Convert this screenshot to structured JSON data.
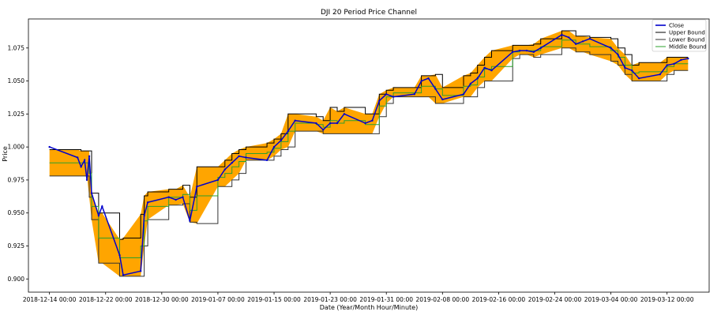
{
  "chart_data": {
    "type": "line",
    "title": "DJI 20 Period Price Channel",
    "xlabel": "Date (Year/Month Hour/Minute)",
    "ylabel": "Price",
    "ylim": [
      0.89,
      1.097
    ],
    "xlim": [
      "2018-12-11",
      "2019-03-18"
    ],
    "x_ticks": [
      "2018-12-14",
      "2018-12-22",
      "2018-12-30",
      "2019-01-07",
      "2019-01-15",
      "2019-01-23",
      "2019-01-31",
      "2019-02-08",
      "2019-02-16",
      "2019-02-24",
      "2019-03-04",
      "2019-03-12"
    ],
    "x_tick_labels": [
      "2018-12-14 00:00",
      "2018-12-22 00:00",
      "2018-12-30 00:00",
      "2019-01-07 00:00",
      "2019-01-15 00:00",
      "2019-01-23 00:00",
      "2019-01-31 00:00",
      "2019-02-08 00:00",
      "2019-02-16 00:00",
      "2019-02-24 00:00",
      "2019-03-04 00:00",
      "2019-03-12 00:00"
    ],
    "y_ticks": [
      0.9,
      0.925,
      0.95,
      0.975,
      1.0,
      1.025,
      1.05,
      1.075
    ],
    "y_tick_labels": [
      "0.900",
      "0.925",
      "0.950",
      "0.975",
      "1.000",
      "1.025",
      "1.050",
      "1.075"
    ],
    "grid": false,
    "legend_position": "top-right",
    "channel_fill_color": "#ffa500",
    "series": [
      {
        "name": "Close",
        "color": "#0000cc",
        "x": [
          "2018-12-14",
          "2018-12-18",
          "2018-12-18",
          "2018-12-19",
          "2018-12-19",
          "2018-12-19",
          "2018-12-20",
          "2018-12-21",
          "2018-12-21",
          "2018-12-24",
          "2018-12-24",
          "2018-12-27",
          "2018-12-27",
          "2018-12-28",
          "2018-12-31",
          "2019-01-01",
          "2019-01-02",
          "2019-01-03",
          "2019-01-04",
          "2019-01-07",
          "2019-01-08",
          "2019-01-09",
          "2019-01-10",
          "2019-01-11",
          "2019-01-14",
          "2019-01-15",
          "2019-01-16",
          "2019-01-17",
          "2019-01-18",
          "2019-01-21",
          "2019-01-22",
          "2019-01-23",
          "2019-01-24",
          "2019-01-25",
          "2019-01-28",
          "2019-01-29",
          "2019-01-30",
          "2019-01-31",
          "2019-02-01",
          "2019-02-04",
          "2019-02-05",
          "2019-02-06",
          "2019-02-07",
          "2019-02-08",
          "2019-02-11",
          "2019-02-12",
          "2019-02-13",
          "2019-02-14",
          "2019-02-15",
          "2019-02-18",
          "2019-02-19",
          "2019-02-20",
          "2019-02-21",
          "2019-02-22",
          "2019-02-25",
          "2019-02-26",
          "2019-02-27",
          "2019-02-28",
          "2019-03-01",
          "2019-03-04",
          "2019-03-05",
          "2019-03-06",
          "2019-03-07",
          "2019-03-08",
          "2019-03-11",
          "2019-03-12",
          "2019-03-13",
          "2019-03-14",
          "2019-03-15"
        ],
        "y": [
          1.0,
          0.992,
          0.985,
          0.99,
          0.975,
          0.993,
          0.965,
          0.948,
          0.955,
          0.918,
          0.903,
          0.906,
          0.948,
          0.958,
          0.962,
          0.96,
          0.962,
          0.944,
          0.97,
          0.975,
          0.983,
          0.988,
          0.993,
          0.992,
          0.99,
          1.0,
          1.005,
          1.012,
          1.02,
          1.018,
          1.013,
          1.018,
          1.018,
          1.025,
          1.018,
          1.02,
          1.035,
          1.04,
          1.038,
          1.04,
          1.05,
          1.052,
          1.044,
          1.036,
          1.04,
          1.048,
          1.052,
          1.06,
          1.058,
          1.072,
          1.073,
          1.073,
          1.072,
          1.075,
          1.085,
          1.083,
          1.078,
          1.08,
          1.082,
          1.075,
          1.07,
          1.06,
          1.058,
          1.052,
          1.055,
          1.062,
          1.063,
          1.066,
          1.067
        ]
      },
      {
        "name": "Upper Bound",
        "color": "#000000",
        "x": [
          "2018-12-14",
          "2018-12-18",
          "2018-12-18",
          "2018-12-19",
          "2018-12-19",
          "2018-12-19",
          "2018-12-20",
          "2018-12-21",
          "2018-12-21",
          "2018-12-24",
          "2018-12-24",
          "2018-12-27",
          "2018-12-27",
          "2018-12-28",
          "2018-12-31",
          "2019-01-01",
          "2019-01-02",
          "2019-01-03",
          "2019-01-04",
          "2019-01-07",
          "2019-01-08",
          "2019-01-09",
          "2019-01-10",
          "2019-01-11",
          "2019-01-14",
          "2019-01-15",
          "2019-01-16",
          "2019-01-17",
          "2019-01-18",
          "2019-01-21",
          "2019-01-22",
          "2019-01-23",
          "2019-01-24",
          "2019-01-25",
          "2019-01-28",
          "2019-01-29",
          "2019-01-30",
          "2019-01-31",
          "2019-02-01",
          "2019-02-04",
          "2019-02-05",
          "2019-02-06",
          "2019-02-07",
          "2019-02-08",
          "2019-02-11",
          "2019-02-12",
          "2019-02-13",
          "2019-02-14",
          "2019-02-15",
          "2019-02-18",
          "2019-02-19",
          "2019-02-20",
          "2019-02-21",
          "2019-02-22",
          "2019-02-25",
          "2019-02-26",
          "2019-02-27",
          "2019-02-28",
          "2019-03-01",
          "2019-03-04",
          "2019-03-05",
          "2019-03-06",
          "2019-03-07",
          "2019-03-08",
          "2019-03-11",
          "2019-03-12",
          "2019-03-13",
          "2019-03-14",
          "2019-03-15"
        ],
        "y": [
          0.998,
          0.998,
          0.997,
          0.997,
          0.997,
          0.997,
          0.965,
          0.95,
          0.95,
          0.93,
          0.931,
          0.949,
          0.963,
          0.966,
          0.968,
          0.968,
          0.971,
          0.962,
          0.985,
          0.985,
          0.99,
          0.995,
          0.998,
          1.0,
          1.003,
          1.006,
          1.01,
          1.025,
          1.025,
          1.023,
          1.02,
          1.03,
          1.027,
          1.03,
          1.025,
          1.025,
          1.04,
          1.043,
          1.045,
          1.045,
          1.054,
          1.054,
          1.055,
          1.045,
          1.054,
          1.056,
          1.062,
          1.068,
          1.073,
          1.077,
          1.077,
          1.077,
          1.078,
          1.082,
          1.088,
          1.088,
          1.084,
          1.084,
          1.083,
          1.082,
          1.075,
          1.07,
          1.062,
          1.064,
          1.064,
          1.068,
          1.068,
          1.068,
          1.068
        ]
      },
      {
        "name": "Lower Bound",
        "color": "#333333",
        "x": [
          "2018-12-14",
          "2018-12-18",
          "2018-12-18",
          "2018-12-19",
          "2018-12-19",
          "2018-12-19",
          "2018-12-20",
          "2018-12-21",
          "2018-12-21",
          "2018-12-24",
          "2018-12-24",
          "2018-12-27",
          "2018-12-27",
          "2018-12-28",
          "2018-12-31",
          "2019-01-01",
          "2019-01-02",
          "2019-01-03",
          "2019-01-04",
          "2019-01-07",
          "2019-01-08",
          "2019-01-09",
          "2019-01-10",
          "2019-01-11",
          "2019-01-14",
          "2019-01-15",
          "2019-01-16",
          "2019-01-17",
          "2019-01-18",
          "2019-01-21",
          "2019-01-22",
          "2019-01-23",
          "2019-01-24",
          "2019-01-25",
          "2019-01-28",
          "2019-01-29",
          "2019-01-30",
          "2019-01-31",
          "2019-02-01",
          "2019-02-04",
          "2019-02-05",
          "2019-02-06",
          "2019-02-07",
          "2019-02-08",
          "2019-02-11",
          "2019-02-12",
          "2019-02-13",
          "2019-02-14",
          "2019-02-15",
          "2019-02-18",
          "2019-02-19",
          "2019-02-20",
          "2019-02-21",
          "2019-02-22",
          "2019-02-25",
          "2019-02-26",
          "2019-02-27",
          "2019-02-28",
          "2019-03-01",
          "2019-03-04",
          "2019-03-05",
          "2019-03-06",
          "2019-03-07",
          "2019-03-08",
          "2019-03-11",
          "2019-03-12",
          "2019-03-13",
          "2019-03-14",
          "2019-03-15"
        ],
        "y": [
          0.978,
          0.978,
          0.978,
          0.978,
          0.978,
          0.962,
          0.945,
          0.912,
          0.912,
          0.902,
          0.902,
          0.902,
          0.925,
          0.945,
          0.956,
          0.956,
          0.957,
          0.943,
          0.942,
          0.97,
          0.97,
          0.975,
          0.98,
          0.99,
          0.99,
          0.993,
          0.998,
          1.0,
          1.012,
          1.012,
          1.01,
          1.01,
          1.01,
          1.01,
          1.01,
          1.01,
          1.023,
          1.033,
          1.038,
          1.038,
          1.038,
          1.038,
          1.033,
          1.033,
          1.038,
          1.038,
          1.045,
          1.05,
          1.05,
          1.067,
          1.07,
          1.07,
          1.068,
          1.07,
          1.075,
          1.075,
          1.072,
          1.072,
          1.07,
          1.065,
          1.062,
          1.055,
          1.05,
          1.05,
          1.05,
          1.055,
          1.058,
          1.058,
          1.058
        ]
      },
      {
        "name": "Middle Bound",
        "color": "#2ca02c",
        "x": [
          "2018-12-14",
          "2018-12-18",
          "2018-12-18",
          "2018-12-19",
          "2018-12-19",
          "2018-12-19",
          "2018-12-20",
          "2018-12-21",
          "2018-12-21",
          "2018-12-24",
          "2018-12-24",
          "2018-12-27",
          "2018-12-27",
          "2018-12-28",
          "2018-12-31",
          "2019-01-01",
          "2019-01-02",
          "2019-01-03",
          "2019-01-04",
          "2019-01-07",
          "2019-01-08",
          "2019-01-09",
          "2019-01-10",
          "2019-01-11",
          "2019-01-14",
          "2019-01-15",
          "2019-01-16",
          "2019-01-17",
          "2019-01-18",
          "2019-01-21",
          "2019-01-22",
          "2019-01-23",
          "2019-01-24",
          "2019-01-25",
          "2019-01-28",
          "2019-01-29",
          "2019-01-30",
          "2019-01-31",
          "2019-02-01",
          "2019-02-04",
          "2019-02-05",
          "2019-02-06",
          "2019-02-07",
          "2019-02-08",
          "2019-02-11",
          "2019-02-12",
          "2019-02-13",
          "2019-02-14",
          "2019-02-15",
          "2019-02-18",
          "2019-02-19",
          "2019-02-20",
          "2019-02-21",
          "2019-02-22",
          "2019-02-25",
          "2019-02-26",
          "2019-02-27",
          "2019-02-28",
          "2019-03-01",
          "2019-03-04",
          "2019-03-05",
          "2019-03-06",
          "2019-03-07",
          "2019-03-08",
          "2019-03-11",
          "2019-03-12",
          "2019-03-13",
          "2019-03-14",
          "2019-03-15"
        ],
        "y": [
          0.988,
          0.988,
          0.988,
          0.988,
          0.988,
          0.98,
          0.955,
          0.931,
          0.931,
          0.916,
          0.916,
          0.925,
          0.944,
          0.955,
          0.962,
          0.962,
          0.964,
          0.952,
          0.963,
          0.977,
          0.98,
          0.985,
          0.989,
          0.995,
          0.996,
          0.999,
          1.004,
          1.012,
          1.018,
          1.017,
          1.015,
          1.02,
          1.018,
          1.02,
          1.017,
          1.017,
          1.031,
          1.038,
          1.041,
          1.041,
          1.046,
          1.046,
          1.044,
          1.039,
          1.046,
          1.047,
          1.053,
          1.059,
          1.061,
          1.072,
          1.073,
          1.073,
          1.073,
          1.076,
          1.081,
          1.081,
          1.078,
          1.078,
          1.076,
          1.073,
          1.068,
          1.062,
          1.056,
          1.057,
          1.057,
          1.061,
          1.063,
          1.063,
          1.063
        ]
      }
    ]
  }
}
